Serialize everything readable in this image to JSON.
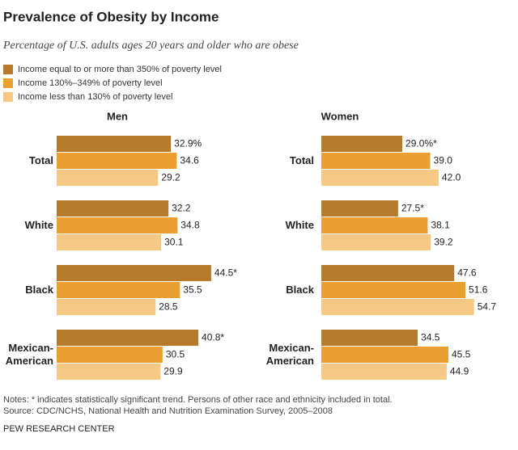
{
  "header": {
    "title": "Prevalence of Obesity by Income",
    "subtitle": "Percentage of U.S. adults ages 20 years and older who are obese"
  },
  "chart_data": [
    {
      "type": "bar",
      "orientation": "horizontal",
      "title": "Men",
      "categories": [
        "Total",
        "White",
        "Black",
        "Mexican-American"
      ],
      "series": [
        {
          "name": "Income equal to or more than 350% of poverty level",
          "color": "#b57a2c",
          "values": [
            32.9,
            32.2,
            44.5,
            40.8
          ],
          "value_labels": [
            "32.9%",
            "32.2",
            "44.5*",
            "40.8*"
          ]
        },
        {
          "name": "Income 130%–349% of poverty level",
          "color": "#e9a030",
          "values": [
            34.6,
            34.8,
            35.5,
            30.5
          ],
          "value_labels": [
            "34.6",
            "34.8",
            "35.5",
            "30.5"
          ]
        },
        {
          "name": "Income less than 130% of poverty level",
          "color": "#f5c883",
          "values": [
            29.2,
            30.1,
            28.5,
            29.9
          ],
          "value_labels": [
            "29.2",
            "30.1",
            "28.5",
            "29.9"
          ]
        }
      ]
    },
    {
      "type": "bar",
      "orientation": "horizontal",
      "title": "Women",
      "categories": [
        "Total",
        "White",
        "Black",
        "Mexican-American"
      ],
      "series": [
        {
          "color": "#b57a2c",
          "values": [
            29.0,
            27.5,
            47.6,
            34.5
          ],
          "value_labels": [
            "29.0%*",
            "27.5*",
            "47.6",
            "34.5"
          ]
        },
        {
          "color": "#e9a030",
          "values": [
            39.0,
            38.1,
            51.6,
            45.5
          ],
          "value_labels": [
            "39.0",
            "38.1",
            "51.6",
            "45.5"
          ]
        },
        {
          "color": "#f5c883",
          "values": [
            42.0,
            39.2,
            54.7,
            44.9
          ],
          "value_labels": [
            "42.0",
            "39.2",
            "54.7",
            "44.9"
          ]
        }
      ]
    }
  ],
  "footer": {
    "notes": "Notes: * indicates statistically significant trend. Persons of other race and ethnicity included in total.",
    "source": "Source: CDC/NCHS, National Health and Nutrition Examination Survey, 2005–2008",
    "credit": "PEW RESEARCH CENTER"
  }
}
